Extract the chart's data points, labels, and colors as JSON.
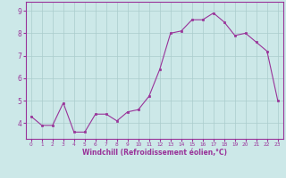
{
  "x": [
    0,
    1,
    2,
    3,
    4,
    5,
    6,
    7,
    8,
    9,
    10,
    11,
    12,
    13,
    14,
    15,
    16,
    17,
    18,
    19,
    20,
    21,
    22,
    23
  ],
  "y": [
    4.3,
    3.9,
    3.9,
    4.9,
    3.6,
    3.6,
    4.4,
    4.4,
    4.1,
    4.5,
    4.6,
    5.2,
    6.4,
    8.0,
    8.1,
    8.6,
    8.6,
    8.9,
    8.5,
    7.9,
    8.0,
    7.6,
    7.2,
    5.0
  ],
  "line_color": "#993399",
  "marker_color": "#993399",
  "bg_color": "#cce8e8",
  "grid_color": "#aacccc",
  "axis_color": "#993399",
  "tick_label_color": "#993399",
  "xlabel": "Windchill (Refroidissement éolien,°C)",
  "ylabel_ticks": [
    4,
    5,
    6,
    7,
    8,
    9
  ],
  "xlim": [
    -0.5,
    23.5
  ],
  "ylim": [
    3.3,
    9.4
  ]
}
